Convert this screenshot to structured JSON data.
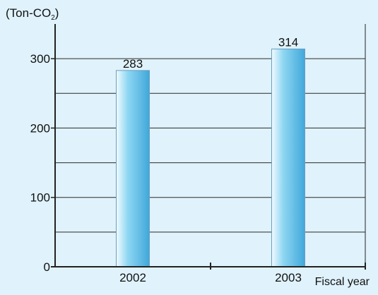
{
  "chart_data": {
    "type": "bar",
    "title": "",
    "ylabel_main": "(Ton-CO",
    "ylabel_sub": "2",
    "ylabel_close": ")",
    "xlabel": "Fiscal year",
    "categories": [
      "2002",
      "2003"
    ],
    "values": [
      283,
      314
    ],
    "data_labels": [
      "283",
      "314"
    ],
    "ylim": [
      0,
      350
    ],
    "yticks": [
      0,
      100,
      200,
      300
    ],
    "ytick_labels": [
      "0",
      "100",
      "200",
      "300"
    ],
    "gridlines": [
      50,
      100,
      150,
      200,
      250,
      300
    ],
    "grid": true,
    "legend": "none"
  },
  "colors": {
    "background": "#e0f2fb",
    "plot_background": "#e0f2fb",
    "bar_edge": "#6a9ec0",
    "bar_light": "#f2fbff",
    "bar_mid": "#8ed6f2",
    "bar_dark": "#3fa8da",
    "axis": "#222222",
    "grid": "#2a2a2a"
  }
}
